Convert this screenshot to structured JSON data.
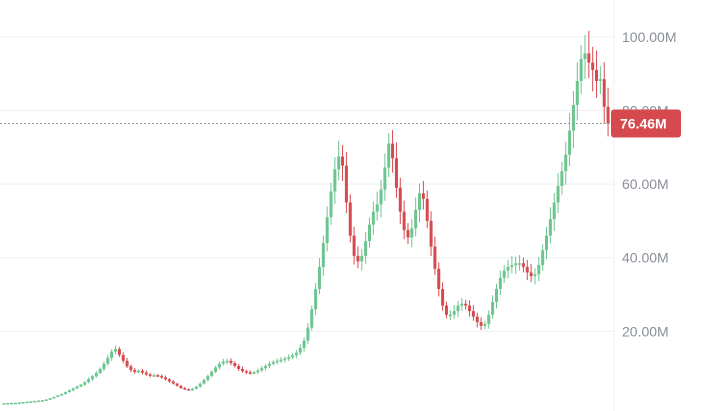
{
  "chart_data": {
    "type": "candlestick",
    "title": "",
    "xlabel": "",
    "ylabel": "",
    "ylim": [
      0,
      110000000
    ],
    "grid": true,
    "colors": {
      "up": "#6cc48f",
      "down": "#d64a4f",
      "grid": "#eef0f3",
      "axis_text": "#8a8f98",
      "price_line": "#9aa0a6"
    },
    "y_ticks": [
      {
        "value": 20000000,
        "label": "20.00M"
      },
      {
        "value": 40000000,
        "label": "40.00M"
      },
      {
        "value": 60000000,
        "label": "60.00M"
      },
      {
        "value": 80000000,
        "label": "80.00M"
      },
      {
        "value": 100000000,
        "label": "100.00M"
      }
    ],
    "current_price": {
      "value": 76460000,
      "label": "76.46M"
    },
    "close_values_millions": [
      0.5,
      0.55,
      0.6,
      0.6,
      0.7,
      0.8,
      0.9,
      1.0,
      1.1,
      1.2,
      1.3,
      1.5,
      1.8,
      2.2,
      2.6,
      3.0,
      3.5,
      4.0,
      4.5,
      5.0,
      5.5,
      6.2,
      7.0,
      7.8,
      8.7,
      9.8,
      11.2,
      12.8,
      14.5,
      15.2,
      13.6,
      12.0,
      10.5,
      9.5,
      9.0,
      9.3,
      8.8,
      8.3,
      8.0,
      8.1,
      7.9,
      7.5,
      7.0,
      6.4,
      5.8,
      5.2,
      4.6,
      4.3,
      4.2,
      4.4,
      5.0,
      5.8,
      6.8,
      7.9,
      9.0,
      10.2,
      11.2,
      11.8,
      12.0,
      11.4,
      10.6,
      9.8,
      9.2,
      8.9,
      8.7,
      8.9,
      9.4,
      10.0,
      10.6,
      11.2,
      11.7,
      12.0,
      12.3,
      12.6,
      13.0,
      13.5,
      14.2,
      15.5,
      17.5,
      21.0,
      26.0,
      31.5,
      37.5,
      44.0,
      51.0,
      58.0,
      64.0,
      67.5,
      65.0,
      55.0,
      46.0,
      40.5,
      39.0,
      40.5,
      44.5,
      49.0,
      52.5,
      54.5,
      58.5,
      64.5,
      71.0,
      67.0,
      59.0,
      52.5,
      47.5,
      45.5,
      48.0,
      53.0,
      57.5,
      56.0,
      50.0,
      43.0,
      37.0,
      31.5,
      27.0,
      24.5,
      24.5,
      25.5,
      27.0,
      27.5,
      27.0,
      25.5,
      24.0,
      22.5,
      21.5,
      22.0,
      24.5,
      28.0,
      31.5,
      34.5,
      36.5,
      37.5,
      38.0,
      38.5,
      38.5,
      37.5,
      36.0,
      35.0,
      35.5,
      38.0,
      42.0,
      46.0,
      50.5,
      55.0,
      59.5,
      63.5,
      68.0,
      74.5,
      81.5,
      88.0,
      94.0,
      95.5,
      93.0,
      91.0,
      88.0,
      88.5,
      81.0,
      76.46
    ]
  }
}
